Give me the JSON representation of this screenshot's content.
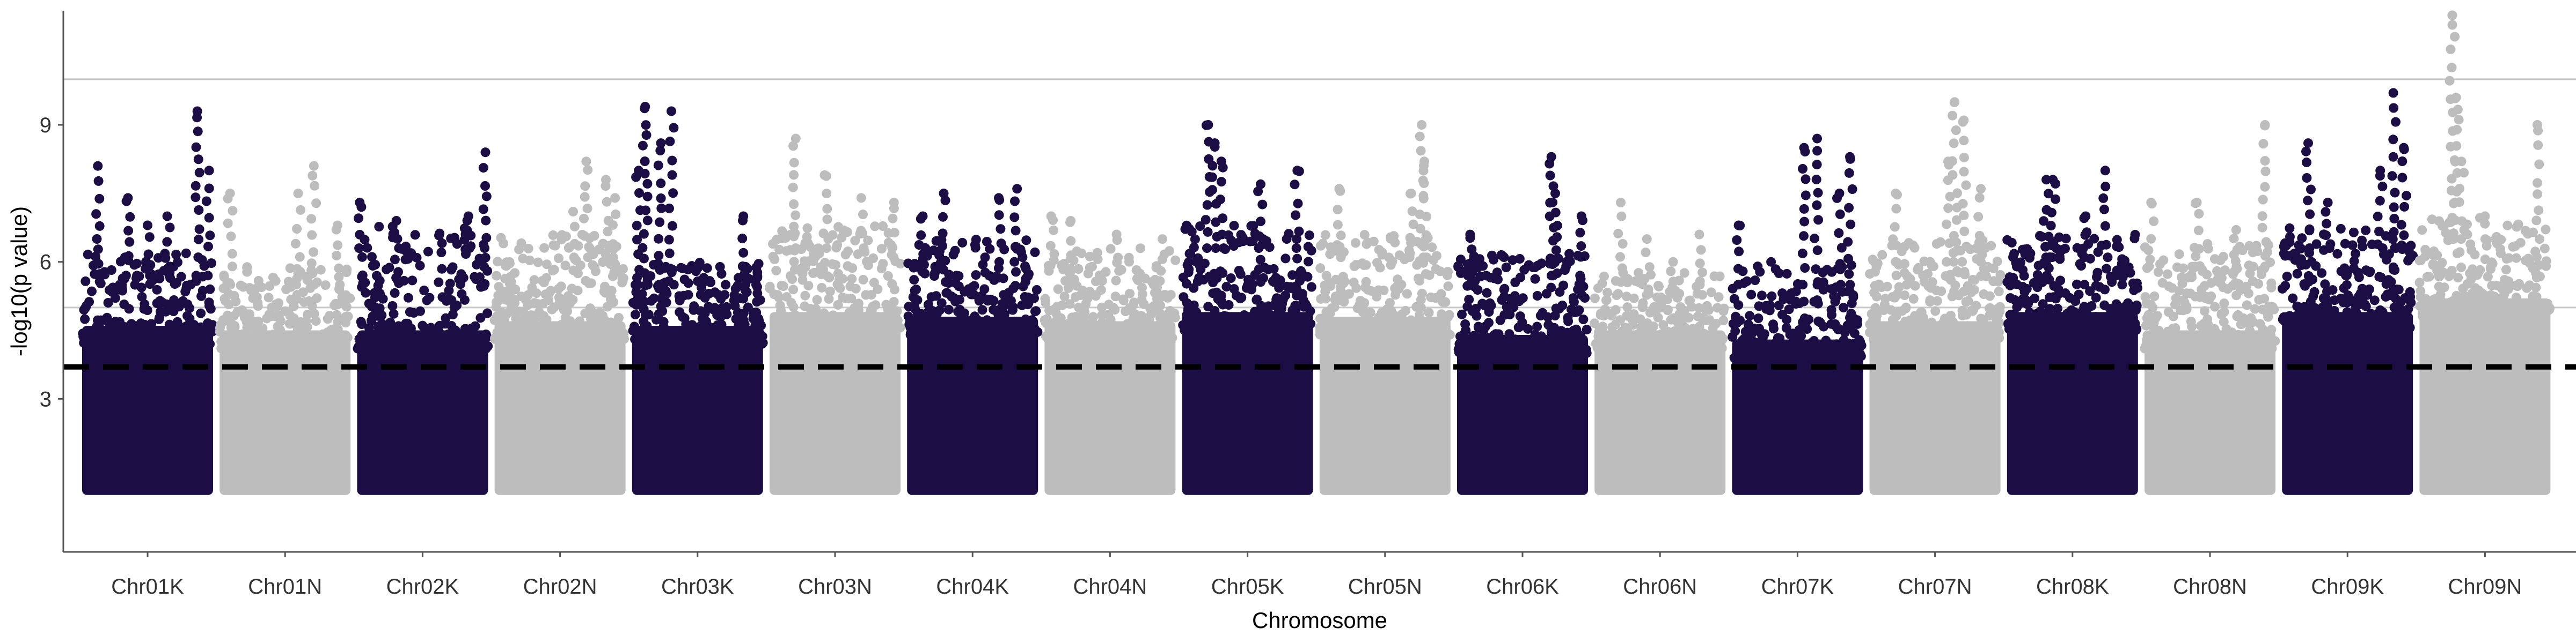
{
  "chart_data": {
    "type": "scatter",
    "subtype": "manhattan",
    "xlabel": "Chromosome",
    "ylabel": "-log10(p value)",
    "categories": [
      "Chr01K",
      "Chr01N",
      "Chr02K",
      "Chr02N",
      "Chr03K",
      "Chr03N",
      "Chr04K",
      "Chr04N",
      "Chr05K",
      "Chr05N",
      "Chr06K",
      "Chr06N",
      "Chr07K",
      "Chr07N",
      "Chr08K",
      "Chr08N",
      "Chr09K",
      "Chr09N"
    ],
    "yticks": [
      3,
      6,
      9
    ],
    "ylim": [
      0,
      11.5
    ],
    "baseline": 1,
    "colors": {
      "K": "#1c0e45",
      "N": "#bdbdbd",
      "threshold": "#000000",
      "gridline": "#c8c8c8",
      "axis": "#555555"
    },
    "threshold": {
      "value": 3.7,
      "style": "dashed"
    },
    "hlines": [
      5.0,
      10.0
    ],
    "chromosomes": [
      {
        "name": "Chr01K",
        "color": "K",
        "dense_top": 4.6,
        "scatter_max": 6.2,
        "peaks": [
          [
            0.12,
            8.1
          ],
          [
            0.35,
            7.4
          ],
          [
            0.88,
            9.3
          ],
          [
            0.97,
            8.0
          ],
          [
            0.65,
            7.0
          ],
          [
            0.5,
            6.8
          ]
        ]
      },
      {
        "name": "Chr01N",
        "color": "N",
        "dense_top": 4.5,
        "scatter_max": 6.0,
        "peaks": [
          [
            0.08,
            7.5
          ],
          [
            0.6,
            7.5
          ],
          [
            0.72,
            8.1
          ],
          [
            0.9,
            6.8
          ]
        ]
      },
      {
        "name": "Chr02K",
        "color": "K",
        "dense_top": 4.5,
        "scatter_max": 6.8,
        "peaks": [
          [
            0.02,
            7.3
          ],
          [
            0.3,
            6.9
          ],
          [
            0.85,
            7.0
          ],
          [
            0.98,
            8.4
          ]
        ]
      },
      {
        "name": "Chr02N",
        "color": "N",
        "dense_top": 4.7,
        "scatter_max": 6.6,
        "peaks": [
          [
            0.6,
            7.1
          ],
          [
            0.7,
            8.2
          ],
          [
            0.85,
            7.8
          ],
          [
            0.92,
            7.4
          ]
        ]
      },
      {
        "name": "Chr03K",
        "color": "K",
        "dense_top": 4.6,
        "scatter_max": 6.0,
        "peaks": [
          [
            0.05,
            8.0
          ],
          [
            0.1,
            9.4
          ],
          [
            0.22,
            8.6
          ],
          [
            0.3,
            9.3
          ],
          [
            0.85,
            7.0
          ]
        ]
      },
      {
        "name": "Chr03N",
        "color": "N",
        "dense_top": 4.9,
        "scatter_max": 6.8,
        "peaks": [
          [
            0.2,
            8.7
          ],
          [
            0.42,
            7.9
          ],
          [
            0.7,
            7.4
          ],
          [
            0.95,
            7.3
          ]
        ]
      },
      {
        "name": "Chr04K",
        "color": "K",
        "dense_top": 4.8,
        "scatter_max": 6.5,
        "peaks": [
          [
            0.28,
            7.5
          ],
          [
            0.7,
            7.4
          ],
          [
            0.84,
            7.6
          ],
          [
            0.12,
            7.0
          ]
        ]
      },
      {
        "name": "Chr04N",
        "color": "N",
        "dense_top": 4.7,
        "scatter_max": 6.3,
        "peaks": [
          [
            0.05,
            7.0
          ],
          [
            0.2,
            6.9
          ],
          [
            0.55,
            6.6
          ],
          [
            0.9,
            6.5
          ]
        ]
      },
      {
        "name": "Chr05K",
        "color": "K",
        "dense_top": 4.9,
        "scatter_max": 6.8,
        "peaks": [
          [
            0.2,
            9.0
          ],
          [
            0.25,
            8.6
          ],
          [
            0.6,
            7.7
          ],
          [
            0.88,
            8.0
          ],
          [
            0.3,
            8.2
          ]
        ]
      },
      {
        "name": "Chr05N",
        "color": "N",
        "dense_top": 4.8,
        "scatter_max": 6.6,
        "peaks": [
          [
            0.15,
            7.6
          ],
          [
            0.78,
            9.0
          ],
          [
            0.8,
            8.2
          ],
          [
            0.7,
            7.5
          ]
        ]
      },
      {
        "name": "Chr06K",
        "color": "K",
        "dense_top": 4.4,
        "scatter_max": 6.2,
        "peaks": [
          [
            0.1,
            6.6
          ],
          [
            0.72,
            8.3
          ],
          [
            0.75,
            7.5
          ],
          [
            0.95,
            7.0
          ]
        ]
      },
      {
        "name": "Chr06N",
        "color": "N",
        "dense_top": 4.5,
        "scatter_max": 5.8,
        "peaks": [
          [
            0.2,
            7.3
          ],
          [
            0.4,
            6.5
          ],
          [
            0.8,
            6.6
          ],
          [
            0.6,
            6.0
          ]
        ]
      },
      {
        "name": "Chr07K",
        "color": "K",
        "dense_top": 4.3,
        "scatter_max": 6.0,
        "peaks": [
          [
            0.05,
            6.8
          ],
          [
            0.55,
            8.5
          ],
          [
            0.65,
            8.7
          ],
          [
            0.82,
            7.5
          ],
          [
            0.9,
            8.3
          ]
        ]
      },
      {
        "name": "Chr07N",
        "color": "N",
        "dense_top": 4.7,
        "scatter_max": 6.5,
        "peaks": [
          [
            0.2,
            7.5
          ],
          [
            0.6,
            8.2
          ],
          [
            0.65,
            9.5
          ],
          [
            0.72,
            9.1
          ],
          [
            0.85,
            7.6
          ]
        ]
      },
      {
        "name": "Chr08K",
        "color": "K",
        "dense_top": 4.9,
        "scatter_max": 6.6,
        "peaks": [
          [
            0.3,
            7.8
          ],
          [
            0.35,
            7.8
          ],
          [
            0.75,
            8.0
          ],
          [
            0.6,
            7.0
          ]
        ]
      },
      {
        "name": "Chr08N",
        "color": "N",
        "dense_top": 4.5,
        "scatter_max": 6.4,
        "peaks": [
          [
            0.05,
            7.3
          ],
          [
            0.4,
            7.3
          ],
          [
            0.92,
            9.0
          ],
          [
            0.7,
            6.7
          ]
        ]
      },
      {
        "name": "Chr09K",
        "color": "K",
        "dense_top": 4.9,
        "scatter_max": 6.8,
        "peaks": [
          [
            0.2,
            8.6
          ],
          [
            0.35,
            7.3
          ],
          [
            0.85,
            9.7
          ],
          [
            0.93,
            8.5
          ],
          [
            0.75,
            8.0
          ]
        ]
      },
      {
        "name": "Chr09N",
        "color": "N",
        "dense_top": 5.2,
        "scatter_max": 7.0,
        "peaks": [
          [
            0.25,
            11.4
          ],
          [
            0.28,
            9.6
          ],
          [
            0.32,
            8.2
          ],
          [
            0.9,
            9.0
          ],
          [
            0.5,
            7.0
          ]
        ]
      }
    ]
  }
}
